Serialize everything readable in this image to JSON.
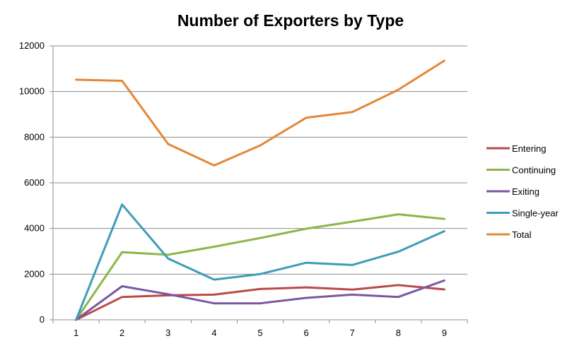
{
  "chart_data": {
    "type": "line",
    "title": "Number of Exporters by Type",
    "xlabel": "",
    "ylabel": "",
    "x": [
      1,
      2,
      3,
      4,
      5,
      6,
      7,
      8,
      9
    ],
    "ylim": [
      0,
      12000
    ],
    "yticks": [
      0,
      2000,
      4000,
      6000,
      8000,
      10000,
      12000
    ],
    "grid": "horizontal",
    "legend_position": "right",
    "series": [
      {
        "name": "Entering",
        "color": "#b94a48",
        "values": [
          0,
          1000,
          1070,
          1100,
          1350,
          1420,
          1320,
          1520,
          1330
        ]
      },
      {
        "name": "Continuing",
        "color": "#8db54a",
        "values": [
          0,
          2960,
          2850,
          3200,
          3580,
          3990,
          4300,
          4620,
          4420
        ]
      },
      {
        "name": "Exiting",
        "color": "#7b57a3",
        "values": [
          0,
          1470,
          1120,
          720,
          720,
          960,
          1100,
          1000,
          1720
        ]
      },
      {
        "name": "Single-year",
        "color": "#3f9cb8",
        "values": [
          0,
          5050,
          2680,
          1760,
          2000,
          2500,
          2400,
          2980,
          3880
        ]
      },
      {
        "name": "Total",
        "color": "#e3873a",
        "values": [
          10520,
          10470,
          7700,
          6760,
          7640,
          8850,
          9100,
          10080,
          11350
        ]
      }
    ]
  }
}
